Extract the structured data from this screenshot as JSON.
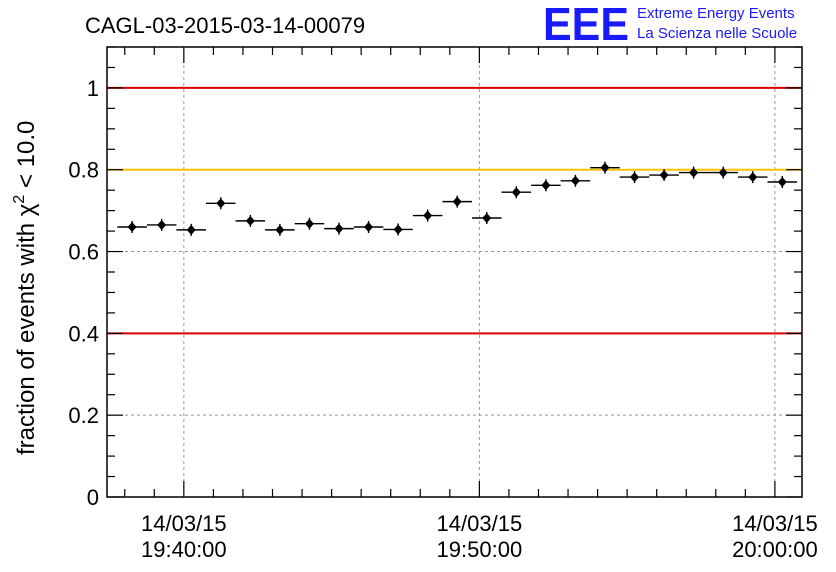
{
  "chart_data": {
    "type": "scatter",
    "title": "CAGL-03-2015-03-14-00079",
    "ylabel_prefix": "fraction of events with ",
    "ylabel_symbol": "χ",
    "ylabel_sup": "2",
    "ylabel_suffix": " < 10.0",
    "ylim": [
      0,
      1.1
    ],
    "yticks": [
      0,
      0.2,
      0.4,
      0.6,
      0.8,
      1
    ],
    "ytick_labels": [
      "0",
      "0.2",
      "0.4",
      "0.6",
      "0.8",
      "1"
    ],
    "xticks": [
      {
        "date": "14/03/15",
        "time": "19:40:00"
      },
      {
        "date": "14/03/15",
        "time": "19:50:00"
      },
      {
        "date": "14/03/15",
        "time": "20:00:00"
      }
    ],
    "grid": true,
    "reference_lines": [
      {
        "y": 1.0,
        "color": "#e00000"
      },
      {
        "y": 0.8,
        "color": "#ffc000"
      },
      {
        "y": 0.4,
        "color": "#e00000"
      }
    ],
    "series": [
      {
        "x_unit": "time-of-day",
        "bin_minutes": 1,
        "x": [
          "19:38:15",
          "19:39:15",
          "19:40:15",
          "19:41:15",
          "19:42:15",
          "19:43:15",
          "19:44:15",
          "19:45:15",
          "19:46:15",
          "19:47:15",
          "19:48:15",
          "19:49:15",
          "19:50:15",
          "19:51:15",
          "19:52:15",
          "19:53:15",
          "19:54:15",
          "19:55:15",
          "19:56:15",
          "19:57:15",
          "19:58:15",
          "19:59:15",
          "20:00:15"
        ],
        "values": [
          0.66,
          0.665,
          0.653,
          0.718,
          0.675,
          0.653,
          0.668,
          0.656,
          0.66,
          0.654,
          0.688,
          0.722,
          0.682,
          0.745,
          0.762,
          0.773,
          0.805,
          0.782,
          0.787,
          0.793,
          0.793,
          0.782,
          0.77
        ],
        "color": "#000000"
      }
    ]
  },
  "logo": {
    "mark": "EEE",
    "line1": "Extreme Energy Events",
    "line2": "La Scienza nelle Scuole"
  }
}
